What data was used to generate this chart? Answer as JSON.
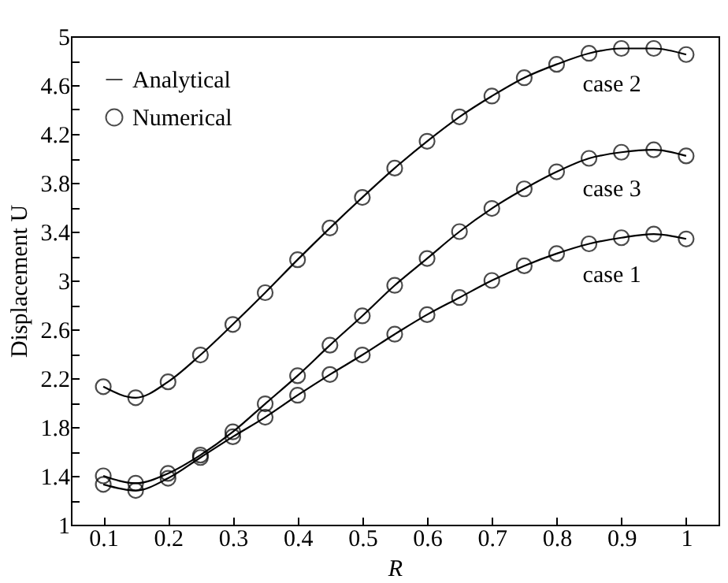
{
  "chart_data": {
    "type": "line",
    "xlabel": "R",
    "ylabel": "Displacement U",
    "x": [
      0.1,
      0.15,
      0.2,
      0.25,
      0.3,
      0.35,
      0.4,
      0.45,
      0.5,
      0.55,
      0.6,
      0.65,
      0.7,
      0.75,
      0.8,
      0.85,
      0.9,
      0.95,
      1.0
    ],
    "series": [
      {
        "name": "Analytical",
        "color": "#000000",
        "line_style": "solid",
        "values": [
          2.13,
          2.04,
          2.17,
          2.39,
          2.64,
          2.9,
          3.17,
          3.43,
          3.68,
          3.92,
          4.14,
          4.34,
          4.51,
          4.66,
          4.77,
          4.86,
          4.9,
          4.9,
          4.85
        ]
      },
      {
        "name": "Numerical",
        "type": "scatter",
        "marker": "circle",
        "color": "#000000",
        "values": [
          2.13,
          2.04,
          2.17,
          2.39,
          2.64,
          2.9,
          3.17,
          3.43,
          3.68,
          3.92,
          4.14,
          4.34,
          4.51,
          4.66,
          4.77,
          4.86,
          4.9,
          4.9,
          4.85
        ]
      },
      {
        "color": "#000000",
        "line_style": "solid",
        "values": [
          1.4,
          1.34,
          1.42,
          1.57,
          1.76,
          1.99,
          2.22,
          2.47,
          2.71,
          2.96,
          3.18,
          3.4,
          3.59,
          3.75,
          3.89,
          4.0,
          4.05,
          4.07,
          4.02
        ]
      },
      {
        "type": "scatter",
        "marker": "circle",
        "color": "#000000",
        "values": [
          1.4,
          1.34,
          1.42,
          1.57,
          1.76,
          1.99,
          2.22,
          2.47,
          2.71,
          2.96,
          3.18,
          3.4,
          3.59,
          3.75,
          3.89,
          4.0,
          4.05,
          4.07,
          4.02
        ]
      },
      {
        "color": "#000000",
        "line_style": "solid",
        "values": [
          1.33,
          1.28,
          1.38,
          1.55,
          1.72,
          1.88,
          2.06,
          2.23,
          2.39,
          2.56,
          2.72,
          2.86,
          3.0,
          3.12,
          3.22,
          3.3,
          3.35,
          3.38,
          3.34
        ]
      },
      {
        "type": "scatter",
        "marker": "circle",
        "color": "#000000",
        "values": [
          1.33,
          1.28,
          1.38,
          1.55,
          1.72,
          1.88,
          2.06,
          2.23,
          2.39,
          2.56,
          2.72,
          2.86,
          3.0,
          3.12,
          3.22,
          3.3,
          3.35,
          3.38,
          3.34
        ]
      }
    ],
    "annotations": [
      "case 2",
      "case 3",
      "case 1"
    ],
    "xlim": [
      0.05,
      1.05
    ],
    "xticks": [
      0.1,
      0.2,
      0.3,
      0.4,
      0.5,
      0.6,
      0.7,
      0.8,
      0.9,
      1
    ],
    "ylim": [
      1,
      5
    ],
    "yticks": [
      1,
      {
        "value": 1.2,
        "label": null
      },
      1.4,
      {
        "value": 1.6,
        "label": null
      },
      1.8,
      {
        "value": 2.0,
        "label": null
      },
      2.2,
      {
        "value": 2.4,
        "label": null
      },
      2.6,
      {
        "value": 2.8,
        "label": null
      },
      3,
      {
        "value": 3.2,
        "label": null
      },
      3.4,
      {
        "value": 3.6,
        "label": null
      },
      3.8,
      {
        "value": 4.0,
        "label": null
      },
      4.2,
      {
        "value": 4.4,
        "label": null
      },
      4.6,
      {
        "value": 4.8,
        "label": null
      },
      5
    ],
    "grid": false,
    "legend": "top left"
  }
}
